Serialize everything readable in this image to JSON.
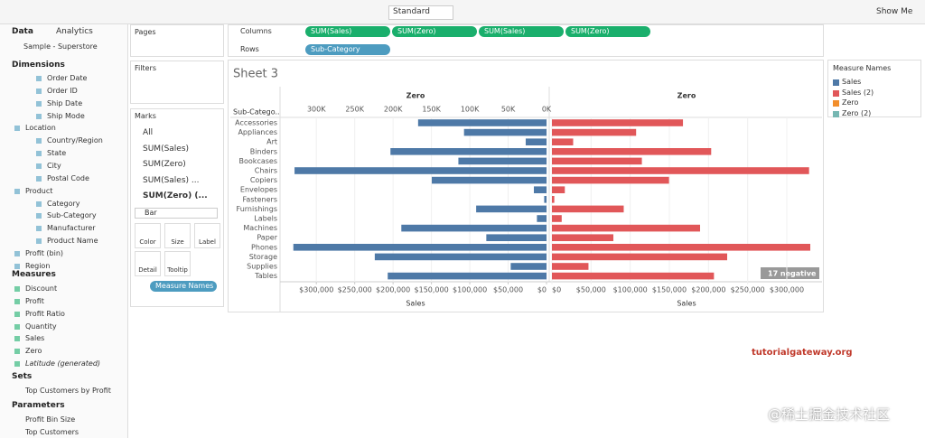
{
  "toolbar": {
    "format": "Standard",
    "show_me": "Show Me"
  },
  "data_pane": {
    "tabs": [
      "Data",
      "Analytics"
    ],
    "source": "Sample - Superstore",
    "dimensions_title": "Dimensions",
    "dimensions": [
      "Order Date",
      "Order ID",
      "Ship Date",
      "Ship Mode",
      "Location",
      "Country/Region",
      "State",
      "City",
      "Postal Code",
      "Product",
      "Category",
      "Sub-Category",
      "Manufacturer",
      "Product Name",
      "Profit (bin)",
      "Region"
    ],
    "measures_title": "Measures",
    "measures": [
      "Discount",
      "Profit",
      "Profit Ratio",
      "Quantity",
      "Sales",
      "Zero",
      "Latitude (generated)"
    ],
    "sets_title": "Sets",
    "sets": [
      "Top Customers by Profit"
    ],
    "parameters_title": "Parameters",
    "parameters": [
      "Profit Bin Size",
      "Top Customers"
    ]
  },
  "cards": {
    "pages": "Pages",
    "filters": "Filters",
    "marks": "Marks",
    "marks_items": [
      "All",
      "SUM(Sales)",
      "SUM(Zero)",
      "SUM(Sales) ...",
      "SUM(Zero) (..."
    ],
    "mark_type": "Bar",
    "buttons": [
      "Color",
      "Size",
      "Label",
      "Detail",
      "Tooltip"
    ],
    "pill": "Measure Names"
  },
  "shelves": {
    "columns_label": "Columns",
    "columns": [
      "SUM(Sales)",
      "SUM(Zero)",
      "SUM(Sales)",
      "SUM(Zero)"
    ],
    "rows_label": "Rows",
    "rows": [
      "Sub-Category"
    ]
  },
  "chart_data": {
    "type": "bar",
    "title": "Sheet 3",
    "row_header": "Sub-Catego..",
    "top_headers": [
      "Zero",
      "Zero"
    ],
    "bottom_titles": [
      "Sales",
      "Sales"
    ],
    "categories": [
      "Accessories",
      "Appliances",
      "Art",
      "Binders",
      "Bookcases",
      "Chairs",
      "Copiers",
      "Envelopes",
      "Fasteners",
      "Furnishings",
      "Labels",
      "Machines",
      "Paper",
      "Phones",
      "Storage",
      "Supplies",
      "Tables"
    ],
    "series": [
      {
        "name": "Sales",
        "color": "#4e79a7",
        "values": [
          167380,
          107532,
          27119,
          203413,
          114880,
          328449,
          149528,
          16476,
          3024,
          91705,
          12486,
          189239,
          78479,
          330007,
          223844,
          46674,
          206966
        ]
      },
      {
        "name": "Sales (2)",
        "color": "#e15759",
        "values": [
          167380,
          107532,
          27119,
          203413,
          114880,
          328449,
          149528,
          16476,
          3024,
          91705,
          12486,
          189239,
          78479,
          330007,
          223844,
          46674,
          206966
        ]
      }
    ],
    "legend_title": "Measure Names",
    "legend_extra": [
      {
        "name": "Zero",
        "color": "#f28e2b"
      },
      {
        "name": "Zero (2)",
        "color": "#76b7b2"
      }
    ],
    "xlim": [
      0,
      345000
    ],
    "xticks_top": [
      {
        "value": 300000,
        "label": "300K"
      },
      {
        "value": 250000,
        "label": "250K"
      },
      {
        "value": 200000,
        "label": "200K"
      },
      {
        "value": 150000,
        "label": "150K"
      },
      {
        "value": 100000,
        "label": "100K"
      },
      {
        "value": 50000,
        "label": "50K"
      },
      {
        "value": 0,
        "label": "0K"
      }
    ],
    "xticks_left": [
      {
        "value": 300000,
        "label": "$300,000"
      },
      {
        "value": 250000,
        "label": "$250,000"
      },
      {
        "value": 200000,
        "label": "$200,000"
      },
      {
        "value": 150000,
        "label": "$150,000"
      },
      {
        "value": 100000,
        "label": "$100,000"
      },
      {
        "value": 50000,
        "label": "$50,000"
      },
      {
        "value": 0,
        "label": "$0"
      }
    ],
    "xticks_right": [
      {
        "value": 0,
        "label": "$0"
      },
      {
        "value": 50000,
        "label": "$50,000"
      },
      {
        "value": 100000,
        "label": "$100,000"
      },
      {
        "value": 150000,
        "label": "$150,000"
      },
      {
        "value": 200000,
        "label": "$200,000"
      },
      {
        "value": 250000,
        "label": "$250,000"
      },
      {
        "value": 300000,
        "label": "$300,000"
      }
    ],
    "badge": "17 negative"
  },
  "watermarks": [
    "tutorialgateway.org",
    "@稀土掘金技术社区"
  ]
}
